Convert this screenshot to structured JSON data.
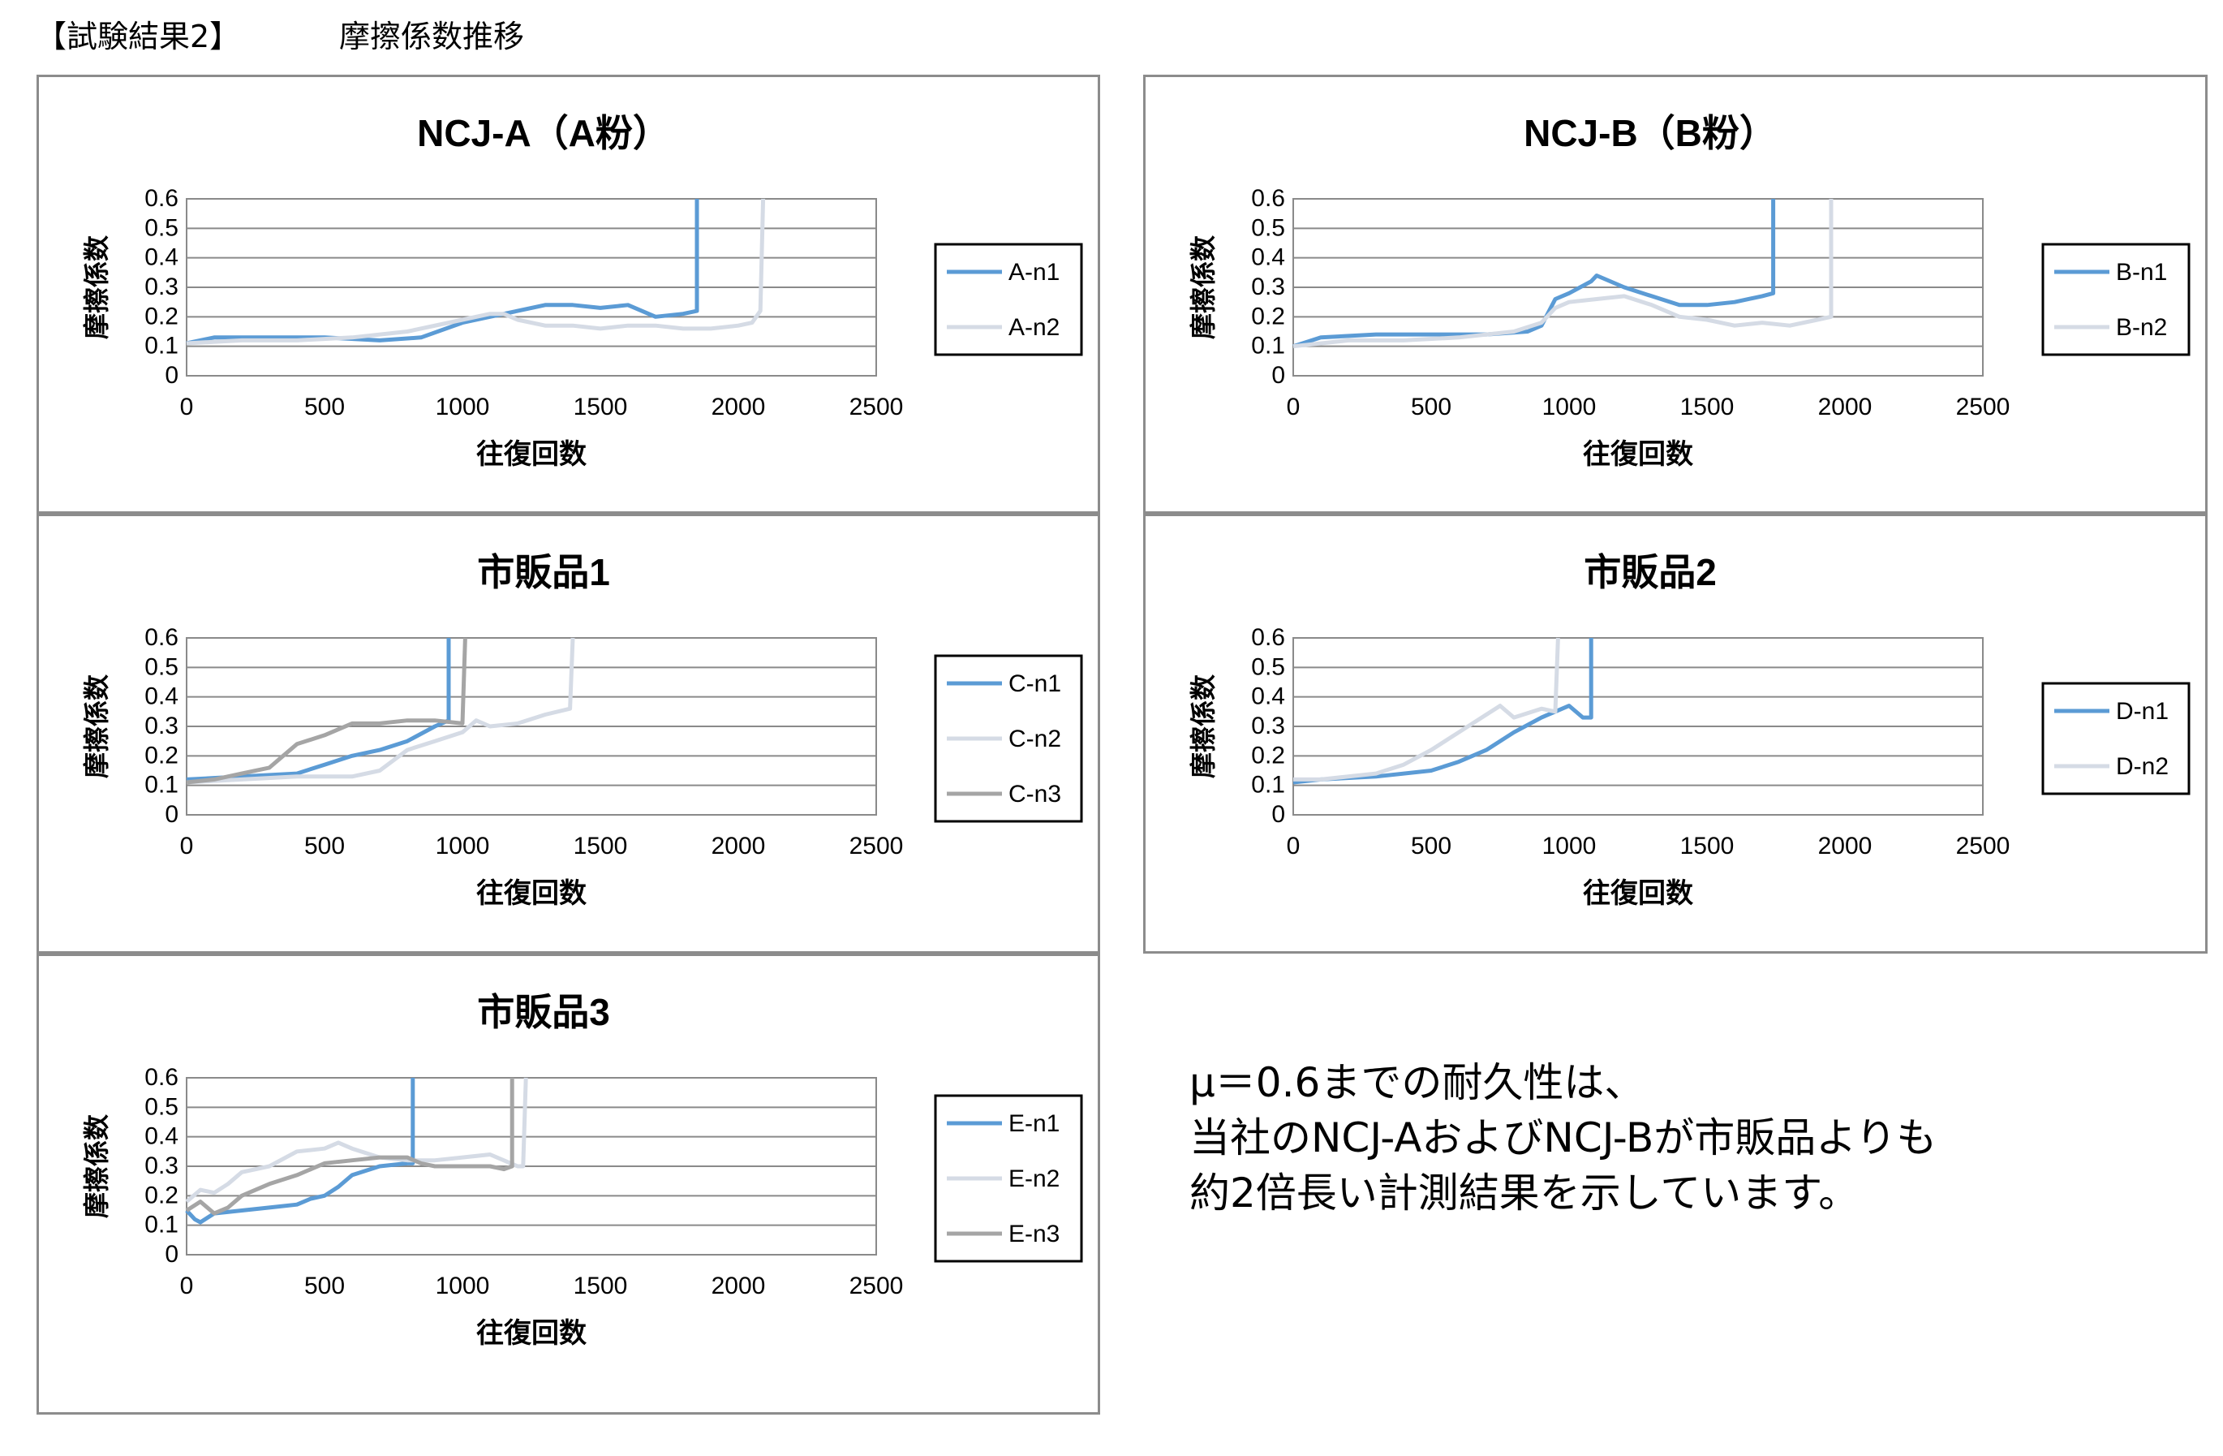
{
  "header": {
    "label": "【試験結果2】",
    "title": "摩擦係数推移"
  },
  "note": {
    "lines": [
      "μ＝0.6までの耐久性は、",
      "当社のNCJ-AおよびNCJ-Bが市販品よりも",
      "約2倍長い計測結果を示しています。"
    ]
  },
  "colors": {
    "n1": "#5b9bd5",
    "n2": "#d5dbe5",
    "n3": "#a5a5a5"
  },
  "chart_data": [
    {
      "type": "line",
      "title": "NCJ-A（A粉）",
      "xlabel": "往復回数",
      "ylabel": "摩擦係数",
      "xlim": [
        0,
        2500
      ],
      "ylim": [
        0,
        0.6
      ],
      "xticks": [
        "0",
        "500",
        "1000",
        "1500",
        "2000",
        "2500"
      ],
      "yticks": [
        "0",
        "0.1",
        "0.2",
        "0.3",
        "0.4",
        "0.5",
        "0.6"
      ],
      "grid": true,
      "legend": "right",
      "series": [
        {
          "name": "A-n1",
          "color": "#5b9bd5",
          "x": [
            0,
            100,
            300,
            500,
            700,
            850,
            1000,
            1100,
            1200,
            1300,
            1400,
            1500,
            1600,
            1700,
            1800,
            1850,
            1850
          ],
          "y": [
            0.11,
            0.13,
            0.13,
            0.13,
            0.12,
            0.13,
            0.18,
            0.2,
            0.22,
            0.24,
            0.24,
            0.23,
            0.24,
            0.2,
            0.21,
            0.22,
            0.6
          ]
        },
        {
          "name": "A-n2",
          "color": "#d5dbe5",
          "x": [
            0,
            200,
            400,
            600,
            800,
            1000,
            1100,
            1150,
            1200,
            1300,
            1400,
            1500,
            1600,
            1700,
            1800,
            1900,
            2000,
            2050,
            2080,
            2090
          ],
          "y": [
            0.11,
            0.12,
            0.12,
            0.13,
            0.15,
            0.19,
            0.21,
            0.21,
            0.19,
            0.17,
            0.17,
            0.16,
            0.17,
            0.17,
            0.16,
            0.16,
            0.17,
            0.18,
            0.22,
            0.6
          ]
        }
      ]
    },
    {
      "type": "line",
      "title": "NCJ-B（B粉）",
      "xlabel": "往復回数",
      "ylabel": "摩擦係数",
      "xlim": [
        0,
        2500
      ],
      "ylim": [
        0,
        0.6
      ],
      "xticks": [
        "0",
        "500",
        "1000",
        "1500",
        "2000",
        "2500"
      ],
      "yticks": [
        "0",
        "0.1",
        "0.2",
        "0.3",
        "0.4",
        "0.5",
        "0.6"
      ],
      "grid": true,
      "legend": "right",
      "series": [
        {
          "name": "B-n1",
          "color": "#5b9bd5",
          "x": [
            0,
            100,
            300,
            500,
            700,
            850,
            900,
            950,
            1000,
            1080,
            1100,
            1200,
            1300,
            1400,
            1500,
            1600,
            1700,
            1740,
            1740
          ],
          "y": [
            0.1,
            0.13,
            0.14,
            0.14,
            0.14,
            0.15,
            0.17,
            0.26,
            0.28,
            0.32,
            0.34,
            0.3,
            0.27,
            0.24,
            0.24,
            0.25,
            0.27,
            0.28,
            0.6
          ]
        },
        {
          "name": "B-n2",
          "color": "#d5dbe5",
          "x": [
            0,
            200,
            400,
            600,
            800,
            900,
            950,
            1000,
            1100,
            1200,
            1300,
            1400,
            1500,
            1600,
            1700,
            1800,
            1900,
            1950,
            1950
          ],
          "y": [
            0.1,
            0.12,
            0.12,
            0.13,
            0.15,
            0.18,
            0.23,
            0.25,
            0.26,
            0.27,
            0.24,
            0.2,
            0.19,
            0.17,
            0.18,
            0.17,
            0.19,
            0.2,
            0.6
          ]
        }
      ]
    },
    {
      "type": "line",
      "title": "市販品1",
      "xlabel": "往復回数",
      "ylabel": "摩擦係数",
      "xlim": [
        0,
        2500
      ],
      "ylim": [
        0,
        0.6
      ],
      "xticks": [
        "0",
        "500",
        "1000",
        "1500",
        "2000",
        "2500"
      ],
      "yticks": [
        "0",
        "0.1",
        "0.2",
        "0.3",
        "0.4",
        "0.5",
        "0.6"
      ],
      "grid": true,
      "legend": "right",
      "series": [
        {
          "name": "C-n1",
          "color": "#5b9bd5",
          "x": [
            0,
            200,
            400,
            500,
            600,
            700,
            800,
            900,
            950,
            950
          ],
          "y": [
            0.12,
            0.13,
            0.14,
            0.17,
            0.2,
            0.22,
            0.25,
            0.3,
            0.32,
            0.6
          ]
        },
        {
          "name": "C-n2",
          "color": "#d5dbe5",
          "x": [
            0,
            200,
            400,
            600,
            700,
            800,
            900,
            1000,
            1050,
            1100,
            1200,
            1300,
            1390,
            1400
          ],
          "y": [
            0.11,
            0.12,
            0.13,
            0.13,
            0.15,
            0.22,
            0.25,
            0.28,
            0.32,
            0.3,
            0.31,
            0.34,
            0.36,
            0.6
          ]
        },
        {
          "name": "C-n3",
          "color": "#a5a5a5",
          "x": [
            0,
            100,
            200,
            300,
            350,
            400,
            500,
            600,
            700,
            800,
            900,
            1000,
            1010
          ],
          "y": [
            0.11,
            0.12,
            0.14,
            0.16,
            0.2,
            0.24,
            0.27,
            0.31,
            0.31,
            0.32,
            0.32,
            0.31,
            0.6
          ]
        }
      ]
    },
    {
      "type": "line",
      "title": "市販品2",
      "xlabel": "往復回数",
      "ylabel": "摩擦係数",
      "xlim": [
        0,
        2500
      ],
      "ylim": [
        0,
        0.6
      ],
      "xticks": [
        "0",
        "500",
        "1000",
        "1500",
        "2000",
        "2500"
      ],
      "yticks": [
        "0",
        "0.1",
        "0.2",
        "0.3",
        "0.4",
        "0.5",
        "0.6"
      ],
      "grid": true,
      "legend": "right",
      "series": [
        {
          "name": "D-n1",
          "color": "#5b9bd5",
          "x": [
            0,
            100,
            300,
            500,
            600,
            700,
            800,
            900,
            950,
            1000,
            1050,
            1080,
            1080
          ],
          "y": [
            0.11,
            0.12,
            0.13,
            0.15,
            0.18,
            0.22,
            0.28,
            0.33,
            0.35,
            0.37,
            0.33,
            0.33,
            0.6
          ]
        },
        {
          "name": "D-n2",
          "color": "#d5dbe5",
          "x": [
            0,
            100,
            300,
            400,
            500,
            600,
            700,
            750,
            800,
            900,
            950,
            960
          ],
          "y": [
            0.12,
            0.12,
            0.14,
            0.17,
            0.22,
            0.28,
            0.34,
            0.37,
            0.33,
            0.36,
            0.35,
            0.6
          ]
        }
      ]
    },
    {
      "type": "line",
      "title": "市販品3",
      "xlabel": "往復回数",
      "ylabel": "摩擦係数",
      "xlim": [
        0,
        2500
      ],
      "ylim": [
        0,
        0.6
      ],
      "xticks": [
        "0",
        "500",
        "1000",
        "1500",
        "2000",
        "2500"
      ],
      "yticks": [
        "0",
        "0.1",
        "0.2",
        "0.3",
        "0.4",
        "0.5",
        "0.6"
      ],
      "grid": true,
      "legend": "right",
      "series": [
        {
          "name": "E-n1",
          "color": "#5b9bd5",
          "x": [
            0,
            30,
            50,
            100,
            200,
            300,
            400,
            450,
            500,
            550,
            600,
            700,
            800,
            820,
            820
          ],
          "y": [
            0.15,
            0.12,
            0.11,
            0.14,
            0.15,
            0.16,
            0.17,
            0.19,
            0.2,
            0.23,
            0.27,
            0.3,
            0.31,
            0.31,
            0.6
          ]
        },
        {
          "name": "E-n2",
          "color": "#d5dbe5",
          "x": [
            0,
            50,
            100,
            150,
            200,
            300,
            400,
            500,
            550,
            600,
            700,
            800,
            900,
            1000,
            1100,
            1200,
            1220,
            1230
          ],
          "y": [
            0.18,
            0.22,
            0.21,
            0.24,
            0.28,
            0.3,
            0.35,
            0.36,
            0.38,
            0.36,
            0.33,
            0.32,
            0.32,
            0.33,
            0.34,
            0.3,
            0.3,
            0.6
          ]
        },
        {
          "name": "E-n3",
          "color": "#a5a5a5",
          "x": [
            0,
            50,
            100,
            150,
            200,
            300,
            400,
            500,
            600,
            700,
            800,
            850,
            900,
            1000,
            1100,
            1150,
            1180,
            1180
          ],
          "y": [
            0.15,
            0.18,
            0.14,
            0.16,
            0.2,
            0.24,
            0.27,
            0.31,
            0.32,
            0.33,
            0.33,
            0.31,
            0.3,
            0.3,
            0.3,
            0.29,
            0.3,
            0.6
          ]
        }
      ]
    }
  ]
}
